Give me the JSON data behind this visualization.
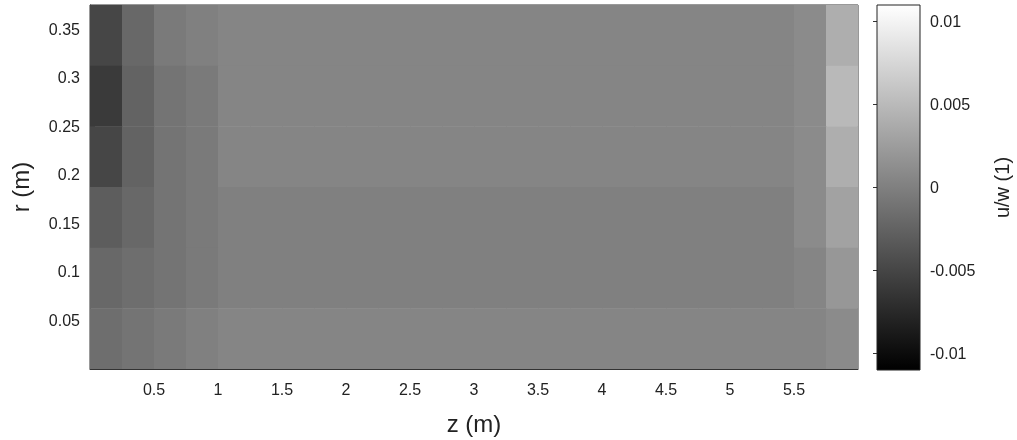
{
  "chart_data": {
    "type": "heatmap",
    "xlabel": "z (m)",
    "ylabel": "r (m)",
    "clabel": "u/w (1)",
    "xlim": [
      0,
      6
    ],
    "xticks": [
      0.5,
      1,
      1.5,
      2,
      2.5,
      3,
      3.5,
      4,
      4.5,
      5,
      5.5
    ],
    "ylim": [
      0,
      0.375
    ],
    "yticks": [
      0.05,
      0.1,
      0.15,
      0.2,
      0.25,
      0.3,
      0.35
    ],
    "clim": [
      -0.011,
      0.011
    ],
    "cticks": [
      -0.01,
      -0.005,
      0,
      0.005,
      0.01
    ],
    "cells": [
      [
        -0.005,
        -0.002,
        -0.0005,
        0,
        0.0005,
        0.0005,
        0.0005,
        0.0005,
        0.0005,
        0.0005,
        0.0005,
        0.0005,
        0.0005,
        0.0005,
        0.0005,
        0.0005,
        0.0005,
        0.0005,
        0.0005,
        0.0005,
        0.0005,
        0.0005,
        0.001,
        0.004
      ],
      [
        -0.006,
        -0.0025,
        -0.001,
        -0.0005,
        0.0005,
        0.0005,
        0.0005,
        0.0005,
        0.0005,
        0.0005,
        0.0005,
        0.0005,
        0.0005,
        0.0005,
        0.0005,
        0.0005,
        0.0005,
        0.0005,
        0.0005,
        0.0005,
        0.0005,
        0.0005,
        0.001,
        0.005
      ],
      [
        -0.005,
        -0.0025,
        -0.001,
        -0.0005,
        0.0005,
        0.0005,
        0.0005,
        0.0005,
        0.0005,
        0.0005,
        0.0005,
        0.0005,
        0.0005,
        0.0005,
        0.0005,
        0.0005,
        0.0005,
        0.0005,
        0.0005,
        0.0005,
        0.0005,
        0.0005,
        0.001,
        0.004
      ],
      [
        -0.003,
        -0.002,
        -0.001,
        -0.0005,
        0,
        0,
        0,
        0,
        0,
        0,
        0,
        0,
        0,
        0,
        0,
        0,
        0,
        0,
        0,
        0,
        0,
        0,
        0.001,
        0.003
      ],
      [
        -0.002,
        -0.0015,
        -0.001,
        -0.0005,
        0,
        0,
        0,
        0,
        0,
        0,
        0,
        0,
        0,
        0,
        0,
        0,
        0,
        0,
        0,
        0,
        0,
        0,
        0.0005,
        0.002
      ],
      [
        -0.0015,
        -0.001,
        -0.0005,
        0,
        0.0005,
        0.0005,
        0.0005,
        0.0005,
        0.0005,
        0.0005,
        0.0005,
        0.0005,
        0.0005,
        0.0005,
        0.0005,
        0.0005,
        0.0005,
        0.0005,
        0.0005,
        0.0005,
        0.0005,
        0.0005,
        0.0005,
        0.001
      ]
    ]
  }
}
